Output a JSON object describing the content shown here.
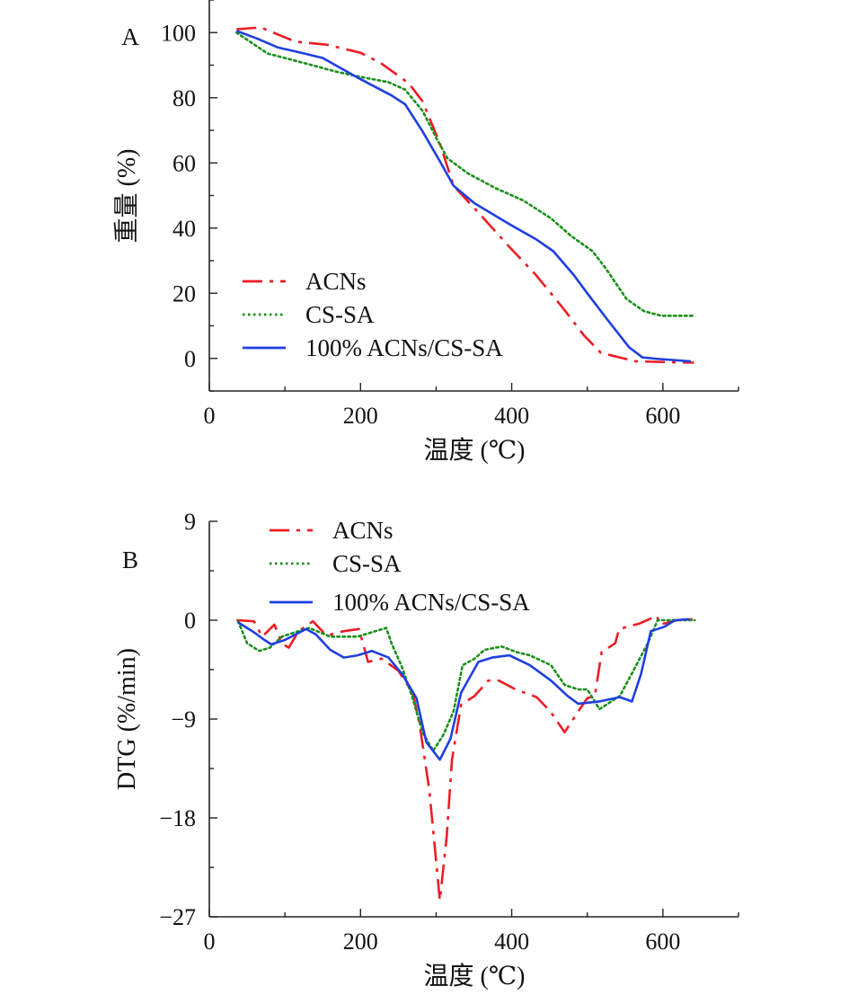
{
  "chart_data": [
    {
      "panel_label": "A",
      "type": "line",
      "xlabel": "温度 (℃)",
      "ylabel": "重量 (%)",
      "xlim": [
        0,
        700
      ],
      "ylim": [
        -10,
        110
      ],
      "xticks": [
        0,
        200,
        400,
        600
      ],
      "yticks": [
        0,
        20,
        40,
        60,
        80,
        100
      ],
      "grid": false,
      "legend_position": "bottom-left",
      "series": [
        {
          "name": "ACNs",
          "color": "#ee1c25",
          "style": "dash-dot",
          "x": [
            36,
            68,
            114,
            155,
            200,
            227,
            264,
            282,
            305,
            323,
            359,
            395,
            432,
            468,
            495,
            518,
            564,
            641
          ],
          "y": [
            101,
            101.6,
            97.2,
            96.3,
            93.8,
            90.6,
            84.4,
            78.9,
            66,
            53,
            44,
            34.7,
            25.6,
            15.4,
            7.2,
            1.7,
            -0.9,
            -1.3
          ]
        },
        {
          "name": "CS-SA",
          "color": "#1a8f1a",
          "style": "dotted",
          "x": [
            36,
            77,
            123,
            168,
            200,
            237,
            259,
            282,
            300,
            315,
            342,
            379,
            415,
            452,
            479,
            507,
            525,
            552,
            575,
            598,
            639
          ],
          "y": [
            100,
            93.6,
            90.8,
            88,
            86.4,
            84.8,
            82.5,
            76,
            67.8,
            61.4,
            56.8,
            52.2,
            48.5,
            43,
            37.5,
            32.9,
            27.4,
            18.2,
            14.5,
            13.1,
            13.1
          ]
        },
        {
          "name": "100% ACNs/CS-SA",
          "color": "#1f3fe0",
          "style": "solid",
          "x": [
            36,
            63,
            91,
            118,
            150,
            196,
            241,
            259,
            282,
            305,
            323,
            351,
            397,
            432,
            455,
            482,
            500,
            527,
            555,
            573,
            596,
            637
          ],
          "y": [
            100.5,
            98.2,
            95.4,
            94,
            92.2,
            86.2,
            80.7,
            78,
            69.7,
            60.5,
            53,
            47.6,
            41.2,
            36.6,
            32.9,
            25.6,
            20,
            11.8,
            3.5,
            0.3,
            -0.2,
            -0.9
          ]
        }
      ]
    },
    {
      "panel_label": "B",
      "type": "line",
      "xlabel": "温度 (℃)",
      "ylabel": "DTG (%/min)",
      "xlim": [
        0,
        700
      ],
      "ylim": [
        -27,
        9
      ],
      "xticks": [
        0,
        200,
        400,
        600
      ],
      "yticks": [
        9,
        0,
        -9,
        -18,
        -27
      ],
      "ytick_labels": [
        "9",
        "0",
        "−9",
        "−18",
        "−27"
      ],
      "grid": false,
      "legend_position": "top",
      "series": [
        {
          "name": "ACNs",
          "color": "#ee1c25",
          "style": "dash-dot",
          "x": [
            36,
            59,
            70,
            86,
            96,
            105,
            118,
            137,
            155,
            178,
            198,
            210,
            228,
            250,
            269,
            278,
            291,
            305,
            314,
            321,
            333,
            351,
            369,
            383,
            405,
            433,
            451,
            470,
            488,
            500,
            510,
            519,
            537,
            542,
            569,
            592,
            596,
            619,
            642
          ],
          "y": [
            0,
            -0.1,
            -1.5,
            -0.4,
            -2.1,
            -2.5,
            -1,
            -0.1,
            -1.4,
            -1,
            -0.8,
            -3.8,
            -3.5,
            -4.6,
            -6.6,
            -9.4,
            -15.5,
            -25.5,
            -19.7,
            -12.7,
            -7.7,
            -6.9,
            -5.5,
            -5.5,
            -6.3,
            -7,
            -8.3,
            -10.2,
            -8.3,
            -7.1,
            -6.9,
            -2.9,
            -2.1,
            -0.8,
            -0.3,
            0.4,
            -0.4,
            0,
            0.1
          ]
        },
        {
          "name": "CS-SA",
          "color": "#1a8f1a",
          "style": "dotted",
          "x": [
            38,
            50,
            66,
            80,
            96,
            118,
            132,
            160,
            196,
            234,
            241,
            255,
            269,
            282,
            296,
            310,
            323,
            335,
            351,
            364,
            387,
            406,
            424,
            452,
            470,
            488,
            500,
            516,
            543,
            561,
            580,
            593,
            616,
            642
          ],
          "y": [
            -0.1,
            -2.1,
            -2.8,
            -2.5,
            -1.5,
            -1,
            -0.7,
            -1.5,
            -1.5,
            -0.7,
            -2.1,
            -4.3,
            -7.1,
            -10.2,
            -11.9,
            -10.4,
            -8.3,
            -4.1,
            -3.5,
            -2.7,
            -2.4,
            -2.9,
            -3.2,
            -4.1,
            -5.9,
            -6.3,
            -6.3,
            -8.1,
            -6.9,
            -4.6,
            -2.1,
            0,
            0,
            0
          ]
        },
        {
          "name": "100% ACNs/CS-SA",
          "color": "#1f3fe0",
          "style": "solid",
          "x": [
            38,
            59,
            73,
            82,
            100,
            128,
            141,
            160,
            178,
            196,
            215,
            237,
            255,
            274,
            287,
            305,
            319,
            333,
            356,
            374,
            397,
            424,
            452,
            474,
            488,
            516,
            543,
            559,
            571,
            584,
            602,
            616,
            635
          ],
          "y": [
            -0.2,
            -1.1,
            -1.8,
            -2.2,
            -1.8,
            -0.8,
            -1.3,
            -2.7,
            -3.4,
            -3.2,
            -2.8,
            -3.4,
            -4.9,
            -7.1,
            -11.1,
            -12.7,
            -10.8,
            -6.6,
            -3.8,
            -3.4,
            -3.2,
            -4.1,
            -5.5,
            -6.9,
            -7.6,
            -7.4,
            -7,
            -7.4,
            -4.9,
            -1,
            -0.6,
            0,
            0.1
          ]
        }
      ]
    }
  ]
}
